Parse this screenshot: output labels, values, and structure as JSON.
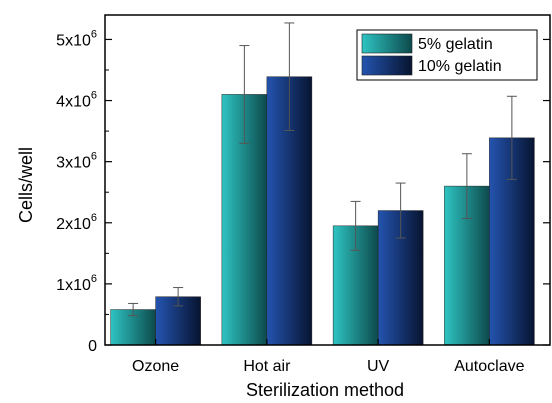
{
  "chart_data": {
    "type": "bar",
    "xlabel": "Sterilization method",
    "ylabel": "Cells/well",
    "ylim": [
      0,
      5400000
    ],
    "yticks": [
      {
        "value": 0,
        "mantissa": "0",
        "exponent": ""
      },
      {
        "value": 1000000,
        "mantissa": "1x10",
        "exponent": "6"
      },
      {
        "value": 2000000,
        "mantissa": "2x10",
        "exponent": "6"
      },
      {
        "value": 3000000,
        "mantissa": "3x10",
        "exponent": "6"
      },
      {
        "value": 4000000,
        "mantissa": "4x10",
        "exponent": "6"
      },
      {
        "value": 5000000,
        "mantissa": "5x10",
        "exponent": "6"
      }
    ],
    "categories": [
      "Ozone",
      "Hot air",
      "UV",
      "Autoclave"
    ],
    "series": [
      {
        "name": "5% gelatin",
        "values": [
          580000,
          4100000,
          1950000,
          2600000
        ],
        "errors": [
          100000,
          800000,
          400000,
          530000
        ],
        "color_light": "#2ec4c2",
        "color_dark": "#0d4a4c"
      },
      {
        "name": "10% gelatin",
        "values": [
          790000,
          4390000,
          2200000,
          3390000
        ],
        "errors": [
          150000,
          880000,
          450000,
          680000
        ],
        "color_light": "#2454b0",
        "color_dark": "#071430"
      }
    ],
    "legend_position": "top-right",
    "grid": false
  }
}
